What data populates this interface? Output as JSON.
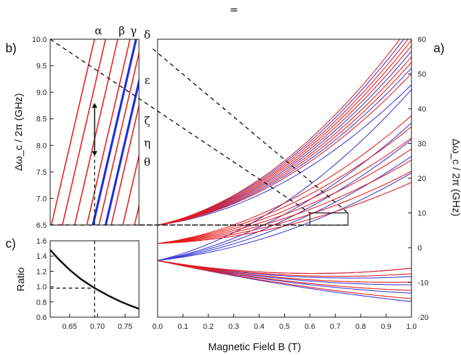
{
  "header_symbol": "=",
  "chart_data": [
    {
      "panel": "a",
      "panel_label": "a)",
      "type": "line",
      "xlabel": "Magnetic Field B (T)",
      "ylabel": "Δω_c / 2π (GHz)",
      "xlim": [
        0.0,
        1.0
      ],
      "ylim": [
        -20,
        60
      ],
      "xticks": [
        "0.0",
        "0.1",
        "0.2",
        "0.3",
        "0.4",
        "0.5",
        "0.6",
        "0.7",
        "0.8",
        "0.9",
        "1.0"
      ],
      "yticks": [
        "-20",
        "-10",
        "0",
        "10",
        "20",
        "30",
        "40",
        "50",
        "60"
      ],
      "y_axis_side": "right",
      "grid": false,
      "zoom_box": {
        "x": [
          0.6,
          0.75
        ],
        "y": [
          6.5,
          10.0
        ]
      },
      "families": [
        {
          "color": "#3a3ad6",
          "y0": 6.5,
          "slope": 13,
          "curv": 37,
          "spread": [
            0,
            -3,
            -6,
            4
          ]
        },
        {
          "color": "#e81b1b",
          "y0": 6.5,
          "slope": 13,
          "curv": 37,
          "spread": [
            -1,
            1,
            2,
            -2,
            3,
            -4,
            5
          ]
        },
        {
          "color": "#3a3ad6",
          "y0": -3.7,
          "slope": 10,
          "curv": 20,
          "spread": [
            0,
            6,
            12,
            -3,
            3
          ]
        },
        {
          "color": "#e81b1b",
          "y0": 1.2,
          "slope": 5,
          "curv": 19,
          "spread": [
            0,
            2,
            4,
            -2,
            6,
            8,
            -4
          ]
        },
        {
          "color": "#3a3ad6",
          "y0": -3.7,
          "slope": -14,
          "curv": 7,
          "spread": [
            0,
            -3,
            3,
            -1.5,
            1.5
          ]
        },
        {
          "color": "#e81b1b",
          "y0": -3.7,
          "slope": -14,
          "curv": 7,
          "spread": [
            -2.5,
            -1,
            0.5,
            2,
            3
          ]
        }
      ]
    },
    {
      "panel": "b",
      "panel_label": "b)",
      "type": "line",
      "ylabel": "Δω_c / 2π (GHz)",
      "xlim": [
        0.615,
        0.775
      ],
      "ylim": [
        6.5,
        10.0
      ],
      "yticks": [
        "6.5",
        "7.0",
        "7.5",
        "8.0",
        "8.5",
        "9.0",
        "9.5",
        "10.0"
      ],
      "state_labels": [
        "α",
        "β",
        "γ",
        "δ",
        "ε",
        "ζ",
        "η",
        "θ"
      ],
      "red_lines_x_at_6_5": [
        0.617,
        0.637,
        0.659,
        0.681,
        0.703,
        0.725,
        0.746,
        0.767
      ],
      "blue_lines_x_at_6_5": [
        0.692,
        0.715
      ],
      "slope_ghz_per_tesla": 45,
      "marker_x": 0.695,
      "arrow_y": [
        7.8,
        8.8
      ]
    },
    {
      "panel": "c",
      "panel_label": "c)",
      "type": "line",
      "ylabel": "Ratio",
      "xlim": [
        0.615,
        0.775
      ],
      "ylim": [
        0.6,
        1.6
      ],
      "xticks": [
        "0.65",
        "0.70",
        "0.75"
      ],
      "yticks": [
        "0.6",
        "0.8",
        "1.0",
        "1.2",
        "1.4",
        "1.6"
      ],
      "series": [
        {
          "x": [
            0.615,
            0.63,
            0.65,
            0.67,
            0.695,
            0.72,
            0.74,
            0.76,
            0.775
          ],
          "y": [
            1.48,
            1.36,
            1.22,
            1.1,
            0.98,
            0.88,
            0.81,
            0.75,
            0.71
          ]
        }
      ],
      "marker_x": 0.695,
      "marker_y": 0.98
    }
  ]
}
